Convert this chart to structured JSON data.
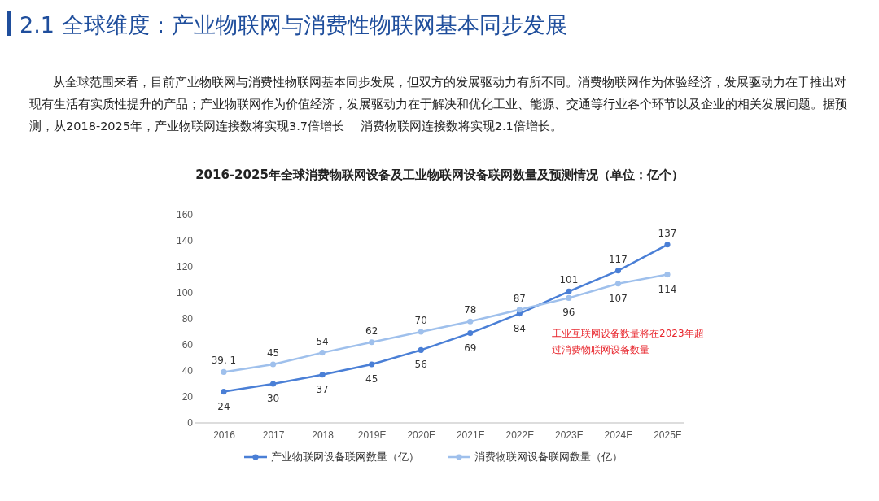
{
  "chart_data": {
    "type": "line",
    "title": "2.1 全球维度：产业物联网与消费性物联网基本同步发展",
    "subtitle": "2016-2025年全球消费物联网设备及工业物联网设备联网数量及预测情况（单位：亿个）",
    "annotations": [
      "从全球范围来看，目前产业物联网与消费性物联网基本同步发展，但双方的发展驱动力有所不同。消费物联网作为体验经济，发展驱动力在于推出对现有生活有实质性提升的产品；产业物联网作为价值经济，发展驱动力在于解决和优化工业、能源、交通等行业各个环节以及企业的相关发展问题。据预测，从2018-2025年，产业物联网连接数将实现3.7倍增长　 消费物联网连接数将实现2.1倍增长。",
      "工业互联网设备数量将在2023年超过消费物联网设备数量"
    ],
    "categories": [
      "2016",
      "2017",
      "2018",
      "2019E",
      "2020E",
      "2021E",
      "2022E",
      "2023E",
      "2024E",
      "2025E"
    ],
    "series": [
      {
        "name": "产业物联网设备联网数量（亿）",
        "color": "#4a7fd6",
        "values": [
          24,
          30,
          37,
          45,
          56,
          69,
          84,
          101,
          117,
          137
        ],
        "value_labels": [
          "24",
          "30",
          "37",
          "45",
          "56",
          "69",
          "84",
          "101",
          "117",
          "137"
        ]
      },
      {
        "name": "消费物联网设备联网数量（亿）",
        "color": "#9fc0ec",
        "values": [
          39.1,
          45,
          54,
          62,
          70,
          78,
          87,
          96,
          107,
          114
        ],
        "value_labels": [
          "39. 1",
          "45",
          "54",
          "62",
          "70",
          "78",
          "87",
          "96",
          "107",
          "114"
        ]
      }
    ],
    "ylim": [
      0,
      160
    ],
    "yticks": [
      0,
      20,
      40,
      60,
      80,
      100,
      120,
      140,
      160
    ],
    "legend": "bottom",
    "marker": "circle",
    "line_style": "solid"
  }
}
